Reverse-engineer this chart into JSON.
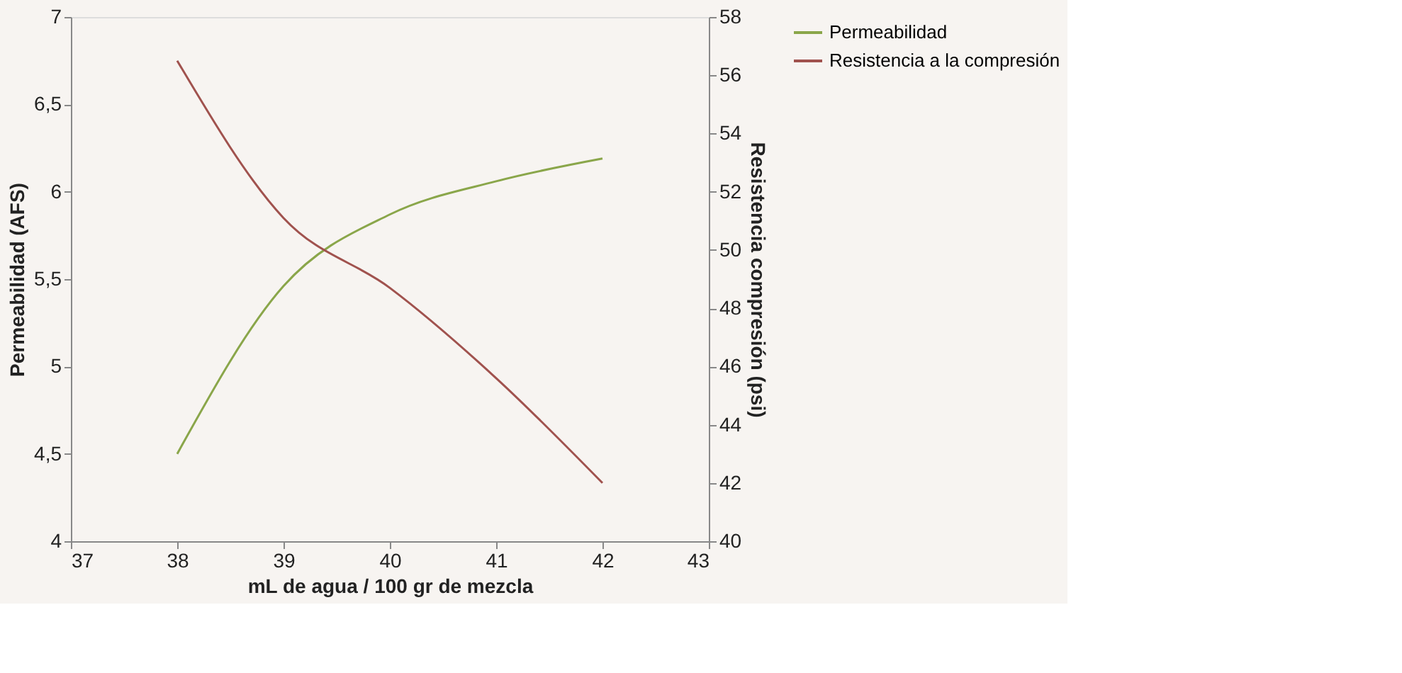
{
  "chart_data": {
    "type": "line",
    "xlabel": "mL de agua / 100  gr de mezcla",
    "ylabel": "Permeabilidad (AFS)",
    "y2label": "Resistencia compresión (psi)",
    "x": [
      38,
      39,
      40,
      41,
      42
    ],
    "series": [
      {
        "name": "Permeabilidad",
        "color": "#8aa64a",
        "values": [
          4.5,
          5.46,
          5.87,
          6.06,
          6.19
        ]
      },
      {
        "name": "Resistencia a la compresión",
        "color": "#a0524e",
        "values": [
          56.5,
          51.1,
          48.7,
          45.6,
          42.0
        ],
        "axis": "y2"
      }
    ],
    "xlim": [
      37,
      43
    ],
    "xticks": [
      37,
      38,
      39,
      40,
      41,
      42,
      43
    ],
    "ylim": [
      4,
      7
    ],
    "yticks": [
      {
        "value": 4,
        "label": "4"
      },
      {
        "value": 4.5,
        "label": "4,5"
      },
      {
        "value": 5,
        "label": "5"
      },
      {
        "value": 5.5,
        "label": "5,5"
      },
      {
        "value": 6,
        "label": "6"
      },
      {
        "value": 6.5,
        "label": "6,5"
      },
      {
        "value": 7,
        "label": "7"
      }
    ],
    "y2lim": [
      40,
      58
    ],
    "y2ticks": [
      40,
      42,
      44,
      46,
      48,
      50,
      52,
      54,
      56,
      58
    ],
    "grid": false,
    "legend": "right",
    "line_style": "solid",
    "marker": "none"
  }
}
